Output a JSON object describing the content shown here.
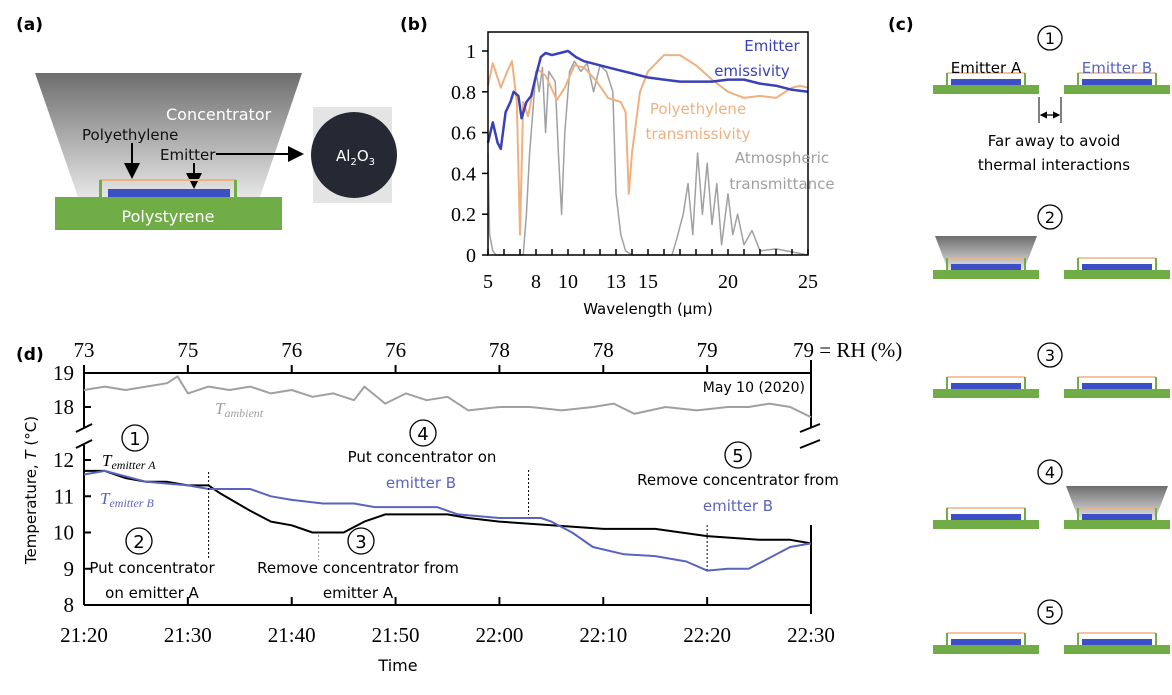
{
  "colors": {
    "green": "#70ad47",
    "blue": "#4050b8",
    "peach": "#f0b080",
    "gray": "#a0a0a0",
    "black": "#000000",
    "lightblue": "#5a64c0"
  },
  "panel_a": {
    "label": "(a)",
    "concentrator": "Concentrator",
    "polyethylene": "Polyethylene",
    "emitter": "Emitter",
    "polystyrene": "Polystyrene",
    "sample_main": "Al",
    "sample_sub1": "2",
    "sample_mid": "O",
    "sample_sub2": "3"
  },
  "panel_c": {
    "label": "(c)",
    "emitter_a": "Emitter A",
    "emitter_b": "Emitter B",
    "note_line1": "Far away to avoid",
    "note_line2": "thermal interactions",
    "stages": [
      {
        "num": "1",
        "concentrator_on": "none"
      },
      {
        "num": "2",
        "concentrator_on": "A"
      },
      {
        "num": "3",
        "concentrator_on": "none"
      },
      {
        "num": "4",
        "concentrator_on": "B"
      },
      {
        "num": "5",
        "concentrator_on": "none"
      }
    ]
  },
  "chart_data": [
    {
      "panel_label": "(b)",
      "type": "line",
      "xlabel": "Wavelength (μm)",
      "ylabel": "",
      "xlim": [
        5,
        25
      ],
      "ylim": [
        0,
        1.05
      ],
      "xticks": [
        5,
        8,
        10,
        13,
        15,
        20,
        25
      ],
      "yticks": [
        "0",
        "0.2",
        "0.4",
        "0.6",
        "0.8",
        "1"
      ],
      "grid": false,
      "series": [
        {
          "name": "Emitter emissivity",
          "name_lines": [
            "Emitter",
            "emissivity"
          ],
          "color": "#3a40b8",
          "x": [
            5,
            5.3,
            5.6,
            5.8,
            6.1,
            6.4,
            6.6,
            6.9,
            7.1,
            7.4,
            7.7,
            8,
            8.3,
            8.6,
            9,
            9.5,
            10,
            10.5,
            11,
            12,
            13,
            14,
            15,
            16,
            17,
            18,
            19,
            20,
            21,
            22,
            23,
            24,
            25
          ],
          "y": [
            0.55,
            0.65,
            0.55,
            0.52,
            0.7,
            0.75,
            0.8,
            0.78,
            0.67,
            0.75,
            0.78,
            0.88,
            0.97,
            0.99,
            0.98,
            0.99,
            1.0,
            0.97,
            0.95,
            0.93,
            0.91,
            0.89,
            0.87,
            0.86,
            0.85,
            0.85,
            0.85,
            0.86,
            0.86,
            0.84,
            0.83,
            0.81,
            0.8
          ]
        },
        {
          "name": "Polyethylene transmissivity",
          "name_lines": [
            "Polyethylene",
            "transmissivity"
          ],
          "color": "#f0b080",
          "x": [
            5,
            5.3,
            5.8,
            6.2,
            6.5,
            6.8,
            7.0,
            7.2,
            7.5,
            7.8,
            8.1,
            8.6,
            9.3,
            9.8,
            10.4,
            11,
            11.8,
            12.5,
            13.3,
            13.6,
            13.8,
            14,
            14.5,
            15,
            16,
            17,
            18,
            19,
            20,
            21,
            22,
            23,
            24,
            24.5,
            25
          ],
          "y": [
            0.83,
            0.94,
            0.82,
            0.9,
            0.95,
            0.75,
            0.1,
            0.75,
            0.68,
            0.8,
            0.91,
            0.88,
            0.76,
            0.82,
            0.93,
            0.92,
            0.85,
            0.77,
            0.75,
            0.7,
            0.3,
            0.5,
            0.8,
            0.9,
            0.98,
            0.98,
            0.93,
            0.86,
            0.8,
            0.77,
            0.78,
            0.77,
            0.82,
            0.83,
            0.82
          ]
        },
        {
          "name": "Atmospheric transmittance",
          "name_lines": [
            "Atmospheric",
            "transmittance"
          ],
          "color": "#a0a0a0",
          "x": [
            5,
            5.1,
            5.3,
            5.5,
            7.2,
            7.4,
            7.6,
            7.8,
            8,
            8.2,
            8.4,
            8.6,
            8.8,
            9.2,
            9.4,
            9.6,
            9.8,
            10.1,
            10.4,
            10.8,
            11.2,
            11.6,
            12,
            12.4,
            12.8,
            13,
            13.3,
            13.6,
            14,
            16.5,
            16.8,
            17.2,
            17.5,
            17.8,
            18.1,
            18.4,
            18.7,
            19,
            19.3,
            19.6,
            20,
            20.3,
            20.6,
            21,
            21.5,
            22,
            23,
            25
          ],
          "y": [
            0.5,
            0.1,
            0.02,
            0,
            0,
            0.2,
            0.5,
            0.7,
            0.9,
            0.8,
            0.92,
            0.6,
            0.9,
            0.85,
            0.5,
            0.2,
            0.6,
            0.9,
            0.95,
            0.9,
            0.94,
            0.8,
            0.93,
            0.9,
            0.8,
            0.3,
            0.1,
            0.02,
            0,
            0,
            0.08,
            0.2,
            0.35,
            0.1,
            0.5,
            0.2,
            0.45,
            0.15,
            0.35,
            0.05,
            0.3,
            0.1,
            0.2,
            0.05,
            0.12,
            0.02,
            0.03,
            0
          ]
        }
      ]
    },
    {
      "panel_label": "(d)",
      "type": "line",
      "xlabel": "Time",
      "ylabel_pre": "Temperature, ",
      "ylabel_var": "T",
      "ylabel_post": " (°C)",
      "date_note": "May 10 (2020)",
      "xticks": [
        "21:20",
        "21:30",
        "21:40",
        "21:50",
        "22:00",
        "22:10",
        "22:20",
        "22:30"
      ],
      "top_axis_labels": [
        "73",
        "75",
        "76",
        "76",
        "78",
        "78",
        "79",
        "79 = RH (%)"
      ],
      "yticks_lower": [
        "8",
        "9",
        "10",
        "11",
        "12"
      ],
      "yticks_upper": [
        "18",
        "19"
      ],
      "ylim_lower": [
        8,
        12.4
      ],
      "ylim_upper": [
        17.4,
        19
      ],
      "axis_break": true,
      "grid": false,
      "series": [
        {
          "name_base": "T",
          "name_sub": "ambient",
          "color": "#a0a0a0",
          "axis": "upper",
          "x": [
            "21:20",
            "21:22",
            "21:24",
            "21:26",
            "21:28",
            "21:29",
            "21:30",
            "21:32",
            "21:34",
            "21:36",
            "21:38",
            "21:40",
            "21:42",
            "21:44",
            "21:46",
            "21:47",
            "21:49",
            "21:51",
            "21:53",
            "21:55",
            "21:57",
            "22:00",
            "22:03",
            "22:06",
            "22:09",
            "22:11",
            "22:13",
            "22:16",
            "22:19",
            "22:22",
            "22:24",
            "22:26",
            "22:28",
            "22:30"
          ],
          "y": [
            18.5,
            18.6,
            18.5,
            18.6,
            18.7,
            18.9,
            18.4,
            18.6,
            18.5,
            18.6,
            18.4,
            18.5,
            18.3,
            18.4,
            18.2,
            18.6,
            18.1,
            18.4,
            18.2,
            18.3,
            17.9,
            18.0,
            18.0,
            17.9,
            18.0,
            18.1,
            17.8,
            18.0,
            17.9,
            18.0,
            18.0,
            18.1,
            18.0,
            17.7
          ]
        },
        {
          "name_base": "T",
          "name_sub": "emitter A",
          "color": "#000000",
          "axis": "lower",
          "x": [
            "21:20",
            "21:22",
            "21:24",
            "21:26",
            "21:28",
            "21:30",
            "21:32",
            "21:33",
            "21:36",
            "21:38",
            "21:40",
            "21:42",
            "21:45",
            "21:47",
            "21:49",
            "21:55",
            "21:57",
            "22:00",
            "22:05",
            "22:10",
            "22:15",
            "22:20",
            "22:25",
            "22:28",
            "22:30"
          ],
          "y": [
            11.7,
            11.7,
            11.5,
            11.4,
            11.4,
            11.3,
            11.3,
            11.1,
            10.6,
            10.3,
            10.2,
            10.0,
            10.0,
            10.3,
            10.5,
            10.5,
            10.4,
            10.3,
            10.2,
            10.1,
            10.1,
            9.9,
            9.8,
            9.8,
            9.7
          ]
        },
        {
          "name_base": "T",
          "name_sub": "emitter B",
          "color": "#5a64c0",
          "axis": "lower",
          "x": [
            "21:20",
            "21:22",
            "21:26",
            "21:30",
            "21:32",
            "21:36",
            "21:38",
            "21:40",
            "21:43",
            "21:46",
            "21:48",
            "21:54",
            "21:56",
            "22:00",
            "22:04",
            "22:05",
            "22:07",
            "22:09",
            "22:12",
            "22:15",
            "22:18",
            "22:20",
            "22:22",
            "22:24",
            "22:26",
            "22:28",
            "22:30"
          ],
          "y": [
            11.6,
            11.7,
            11.4,
            11.3,
            11.2,
            11.2,
            11.0,
            10.9,
            10.8,
            10.8,
            10.7,
            10.7,
            10.5,
            10.4,
            10.4,
            10.3,
            10.0,
            9.6,
            9.4,
            9.35,
            9.2,
            8.95,
            9.0,
            9.0,
            9.3,
            9.6,
            9.7
          ]
        }
      ],
      "annotations": [
        {
          "num": "1",
          "line1": "",
          "line2": ""
        },
        {
          "num": "2",
          "line1": "Put concentrator",
          "line2": "on emitter A",
          "time": "21:32"
        },
        {
          "num": "3",
          "line1": "Remove concentrator from",
          "line2": "emitter A",
          "time": "21:42"
        },
        {
          "num": "4",
          "line1": "Put concentrator on",
          "line2": "emitter B",
          "time": "22:03"
        },
        {
          "num": "5",
          "line1": "Remove concentrator from",
          "line2": "emitter B",
          "time": "22:20"
        }
      ]
    }
  ]
}
